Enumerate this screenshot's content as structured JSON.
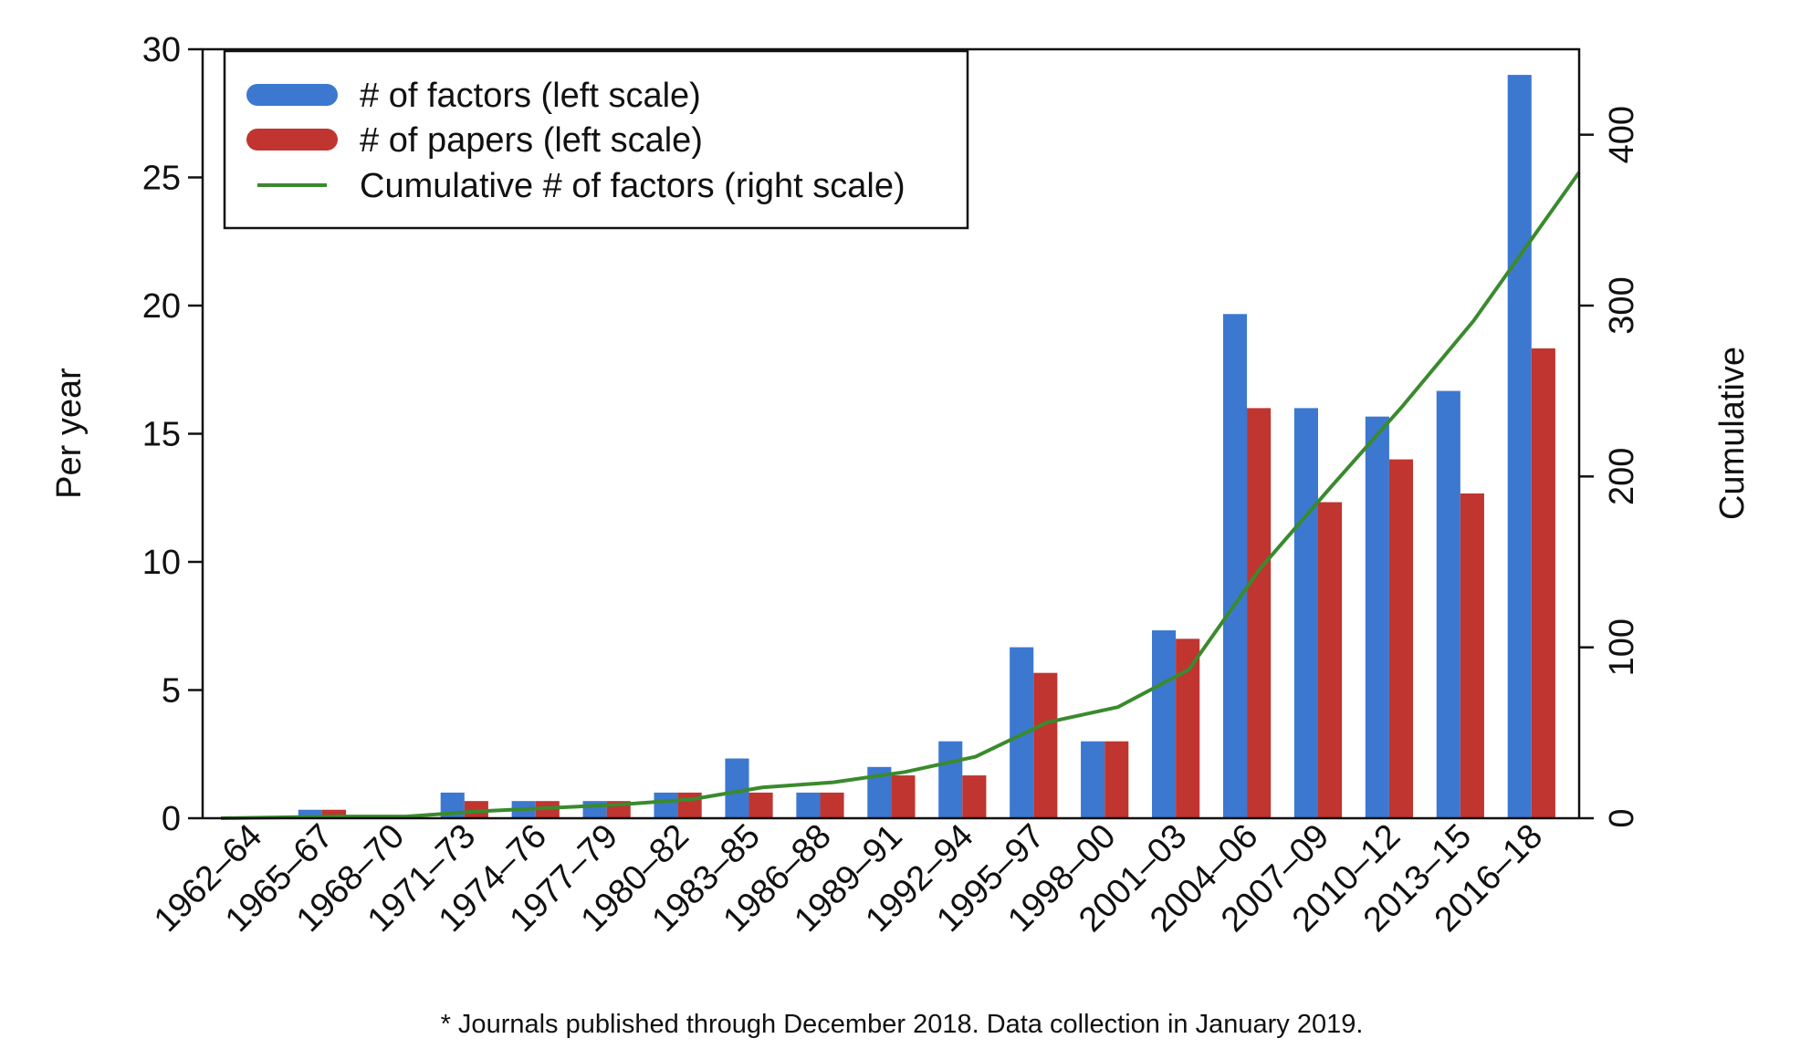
{
  "chart_data": {
    "type": "bar",
    "categories": [
      "1962–64",
      "1965–67",
      "1968–70",
      "1971–73",
      "1974–76",
      "1977–79",
      "1980–82",
      "1983–85",
      "1986–88",
      "1989–91",
      "1992–94",
      "1995–97",
      "1998–00",
      "2001–03",
      "2004–06",
      "2007–09",
      "2010–12",
      "2013–15",
      "2016–18"
    ],
    "series": [
      {
        "name": "# of factors (left scale)",
        "kind": "bar",
        "axis": "left",
        "color": "#3C78D0",
        "values": [
          0,
          0.33,
          0,
          1.0,
          0.67,
          0.67,
          1.0,
          2.33,
          1.0,
          2.0,
          3.0,
          6.67,
          3.0,
          7.33,
          19.67,
          16.0,
          15.67,
          16.67,
          29.0
        ]
      },
      {
        "name": "# of papers (left scale)",
        "kind": "bar",
        "axis": "left",
        "color": "#C0352F",
        "values": [
          0,
          0.33,
          0,
          0.67,
          0.67,
          0.67,
          1.0,
          1.0,
          1.0,
          1.67,
          1.67,
          5.67,
          3.0,
          7.0,
          16.0,
          12.33,
          14.0,
          12.67,
          18.33
        ]
      },
      {
        "name": "Cumulative # of factors (right scale)",
        "kind": "line",
        "axis": "right",
        "color": "#3A8A2E",
        "values": [
          0,
          1,
          1,
          4,
          6,
          8,
          11,
          18,
          21,
          27,
          36,
          56,
          65,
          87,
          146,
          194,
          241,
          291,
          378
        ]
      }
    ],
    "ylabel": "Per year",
    "ylim": [
      0,
      30
    ],
    "yticks": [
      0,
      5,
      10,
      15,
      20,
      25,
      30
    ],
    "y2label": "Cumulative",
    "y2lim": [
      0,
      450
    ],
    "y2ticks": [
      0,
      100,
      200,
      300,
      400
    ],
    "legend_position": "top-left",
    "grid": false,
    "footnote": "* Journals published through December 2018. Data collection in January 2019."
  }
}
